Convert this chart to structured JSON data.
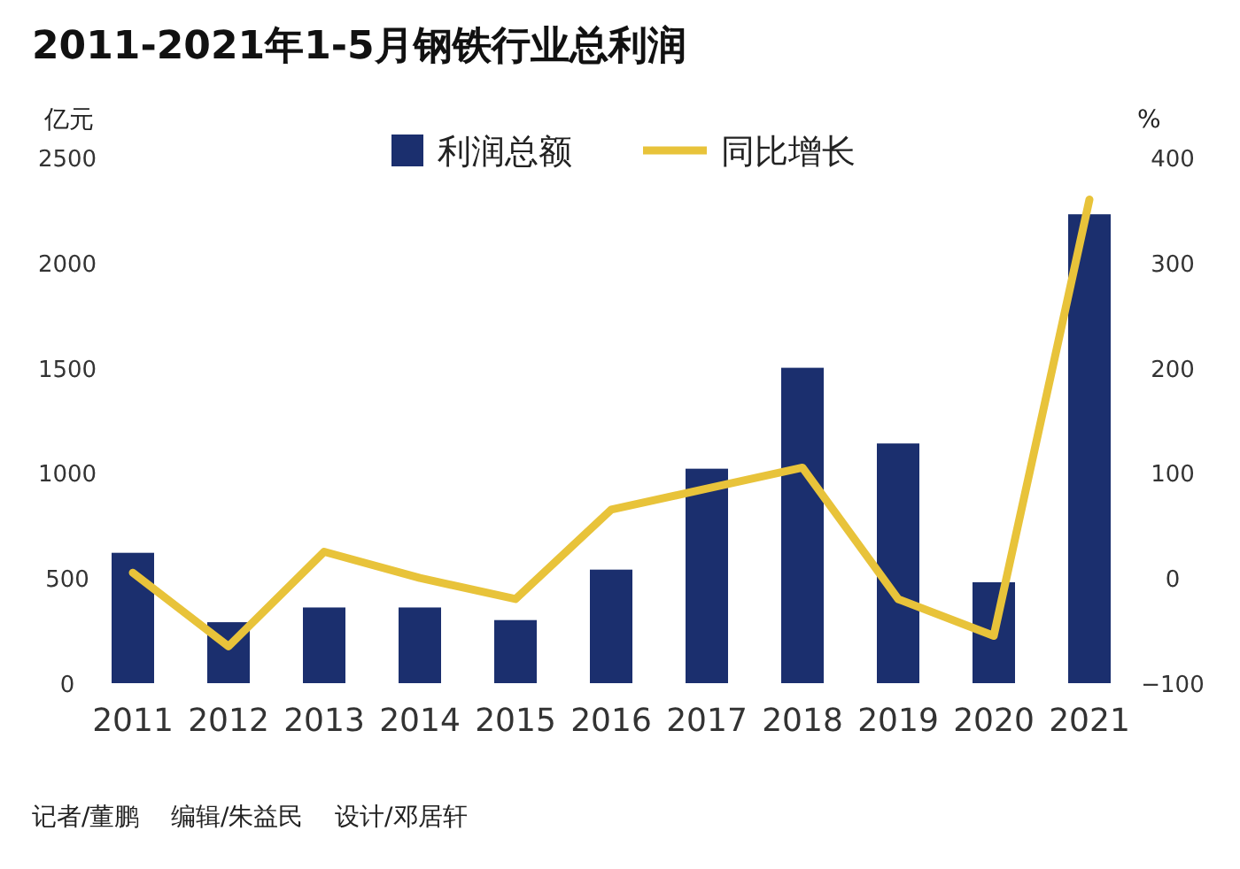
{
  "chart_data": {
    "type": "bar",
    "title": "2011-2021年1-5月钢铁行业总利润",
    "categories": [
      "2011",
      "2012",
      "2013",
      "2014",
      "2015",
      "2016",
      "2017",
      "2018",
      "2019",
      "2020",
      "2021"
    ],
    "series": [
      {
        "name": "利润总额",
        "color": "#1b2f6e",
        "values": [
          620,
          290,
          360,
          360,
          300,
          540,
          1020,
          1500,
          1140,
          480,
          2230
        ]
      },
      {
        "name": "同比增长",
        "type": "line",
        "axis": "y2",
        "color": "#e8c33a",
        "values": [
          5,
          -65,
          25,
          0,
          -20,
          65,
          85,
          105,
          -20,
          -55,
          360
        ]
      }
    ],
    "ylabel": "亿元",
    "y2label": "%",
    "ylim": [
      0,
      2500
    ],
    "yticks": [
      0,
      500,
      1000,
      1500,
      2000,
      2500
    ],
    "y2lim": [
      -100,
      400
    ],
    "y2ticks": [
      -100,
      0,
      100,
      200,
      300,
      400
    ],
    "legend": "top",
    "grid": false,
    "marker": "none",
    "line_style": "solid",
    "annotations": [
      "记者/董鹏    编辑/朱益民    设计/邓居轩"
    ]
  }
}
